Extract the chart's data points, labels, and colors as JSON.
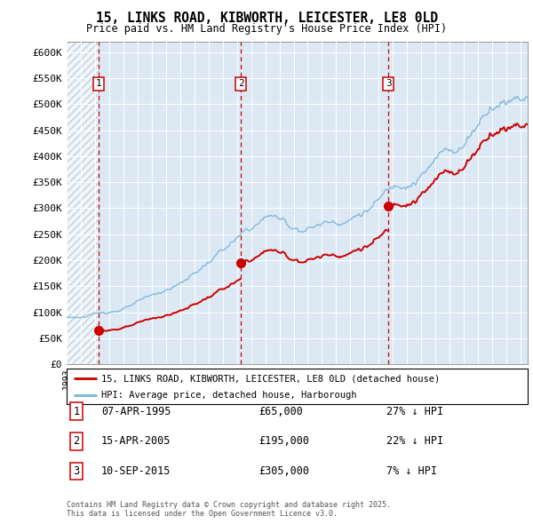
{
  "title_line1": "15, LINKS ROAD, KIBWORTH, LEICESTER, LE8 0LD",
  "title_line2": "Price paid vs. HM Land Registry's House Price Index (HPI)",
  "ylim": [
    0,
    620000
  ],
  "yticks": [
    0,
    50000,
    100000,
    150000,
    200000,
    250000,
    300000,
    350000,
    400000,
    450000,
    500000,
    550000,
    600000
  ],
  "ytick_labels": [
    "£0",
    "£50K",
    "£100K",
    "£150K",
    "£200K",
    "£250K",
    "£300K",
    "£350K",
    "£400K",
    "£450K",
    "£500K",
    "£550K",
    "£600K"
  ],
  "sale_dates": [
    1995.27,
    2005.29,
    2015.69
  ],
  "sale_prices": [
    65000,
    195000,
    305000
  ],
  "sale_labels": [
    "1",
    "2",
    "3"
  ],
  "hpi_color": "#7ab3d8",
  "price_color": "#cc0000",
  "vline_color": "#cc0000",
  "bg_color": "#dce9f5",
  "legend_entries": [
    "15, LINKS ROAD, KIBWORTH, LEICESTER, LE8 0LD (detached house)",
    "HPI: Average price, detached house, Harborough"
  ],
  "table_rows": [
    {
      "num": "1",
      "date": "07-APR-1995",
      "price": "£65,000",
      "hpi": "27% ↓ HPI"
    },
    {
      "num": "2",
      "date": "15-APR-2005",
      "price": "£195,000",
      "hpi": "22% ↓ HPI"
    },
    {
      "num": "3",
      "date": "10-SEP-2015",
      "price": "£305,000",
      "hpi": "7% ↓ HPI"
    }
  ],
  "footer": "Contains HM Land Registry data © Crown copyright and database right 2025.\nThis data is licensed under the Open Government Licence v3.0.",
  "xmin": 1993.0,
  "xmax": 2025.5
}
